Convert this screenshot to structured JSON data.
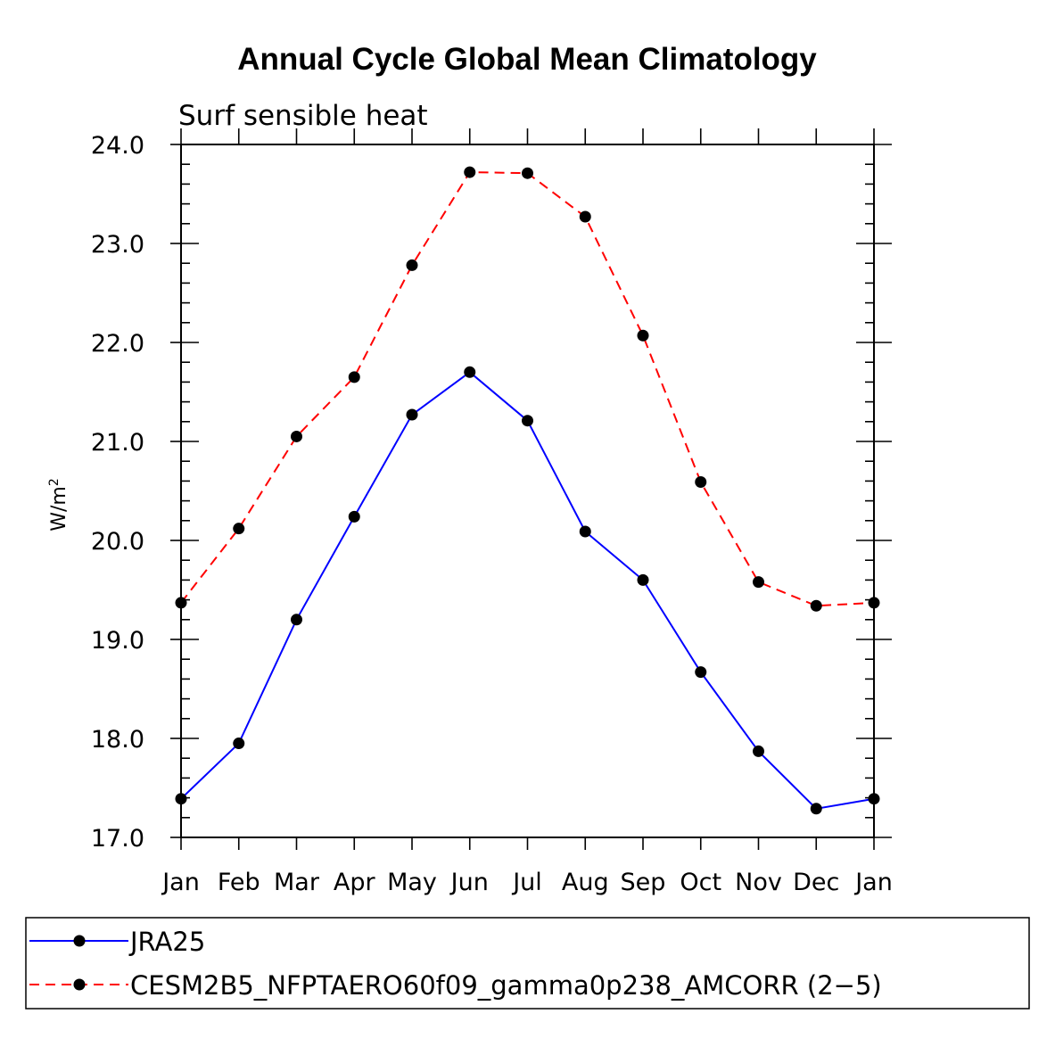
{
  "chart_data": {
    "type": "line",
    "title": "Annual Cycle Global Mean Climatology",
    "subtitle": "Surf sensible heat",
    "ylabel_base": "W/m",
    "ylabel_sup": "2",
    "xlabel": "",
    "ylim": [
      17.0,
      24.0
    ],
    "yticks": [
      "17.0",
      "18.0",
      "19.0",
      "20.0",
      "21.0",
      "22.0",
      "23.0",
      "24.0"
    ],
    "categories": [
      "Jan",
      "Feb",
      "Mar",
      "Apr",
      "May",
      "Jun",
      "Jul",
      "Aug",
      "Sep",
      "Oct",
      "Nov",
      "Dec",
      "Jan"
    ],
    "series": [
      {
        "name": "JRA25",
        "color": "#0000ff",
        "dash": "solid",
        "values": [
          17.39,
          17.95,
          19.2,
          20.24,
          21.27,
          21.7,
          21.21,
          20.09,
          19.6,
          18.67,
          17.87,
          17.29,
          17.39
        ]
      },
      {
        "name": "CESM2B5_NFPTAERO60f09_gamma0p238_AMCORR (2−5)",
        "color": "#ff0000",
        "dash": "dashed",
        "values": [
          19.37,
          20.12,
          21.05,
          21.65,
          22.78,
          23.72,
          23.71,
          23.27,
          22.07,
          20.59,
          19.58,
          19.34,
          19.37
        ]
      }
    ],
    "legend_position": "bottom"
  }
}
